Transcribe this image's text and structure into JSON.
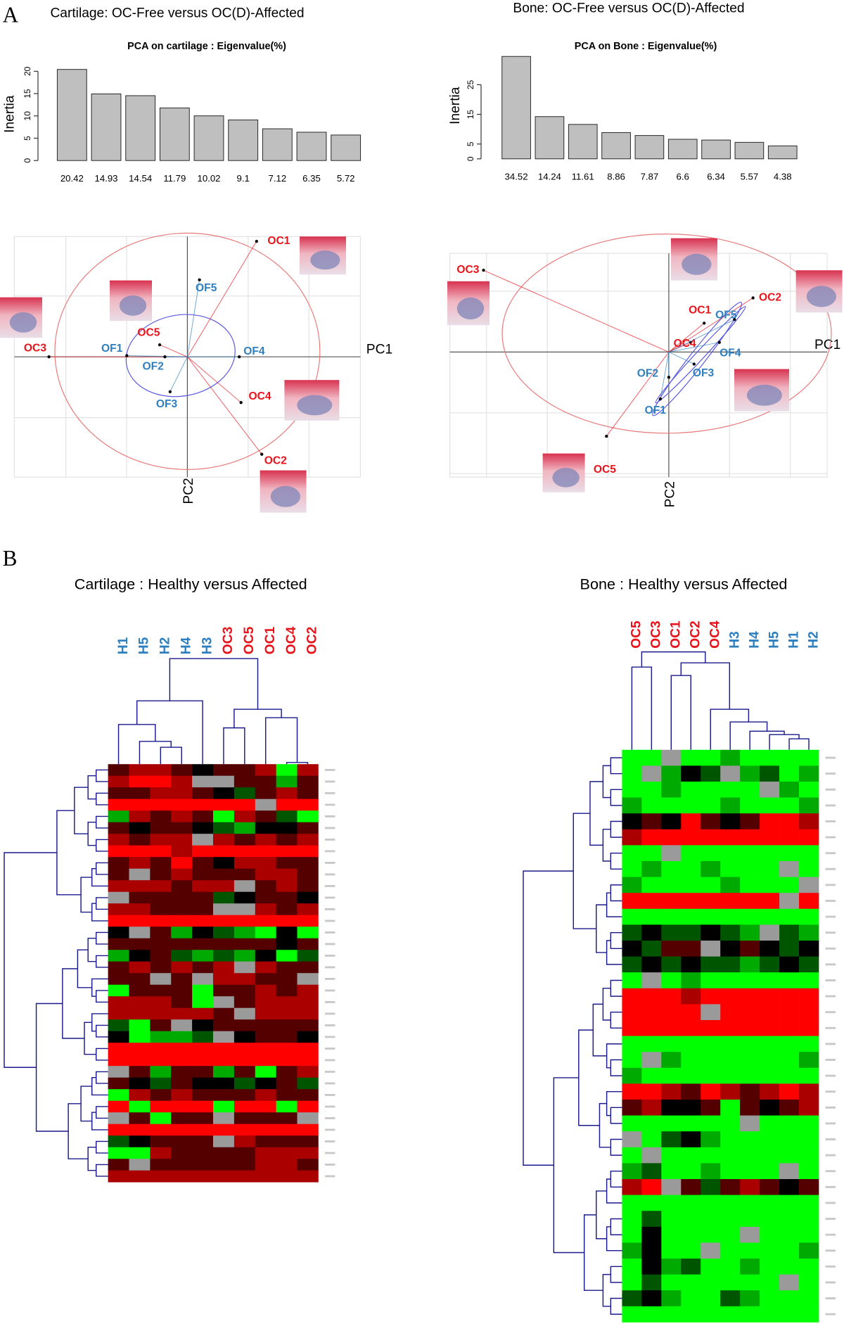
{
  "panel_labels": [
    "A",
    "B"
  ],
  "chart_data": [
    {
      "type": "bar",
      "title": "Cartilage: OC-Free versus OC(D)-Affected",
      "subtitle": "PCA on cartilage : Eigenvalue(%)",
      "ylabel": "Inertia",
      "values": [
        20.42,
        14.93,
        14.54,
        11.79,
        10.02,
        9.1,
        7.12,
        6.35,
        5.72
      ],
      "color": "#bfbfbf",
      "ylim": [
        0,
        21
      ],
      "yticks": [
        0,
        5,
        10,
        15,
        20
      ]
    },
    {
      "type": "bar",
      "title": "Bone: OC-Free versus OC(D)-Affected",
      "subtitle": "PCA on Bone : Eigenvalue(%)",
      "ylabel": "Inertia",
      "values": [
        34.52,
        14.24,
        11.61,
        8.86,
        7.87,
        6.6,
        6.34,
        5.57,
        4.38
      ],
      "color": "#bfbfbf",
      "ylim": [
        0,
        35
      ],
      "yticks": [
        0,
        5,
        15,
        25
      ]
    },
    {
      "type": "scatter",
      "xlabel": "PC1",
      "ylabel": "PC2",
      "xlim": [
        -1,
        1
      ],
      "ylim": [
        -1,
        1
      ],
      "grid": true,
      "points": [
        {
          "label": "OC1",
          "color": "#e8141b",
          "x": 0.4,
          "y": 0.96
        },
        {
          "label": "OC2",
          "color": "#e8141b",
          "x": 0.43,
          "y": -0.81
        },
        {
          "label": "OC3",
          "color": "#e8141b",
          "x": -0.8,
          "y": 0.0
        },
        {
          "label": "OC4",
          "color": "#e8141b",
          "x": 0.31,
          "y": -0.38
        },
        {
          "label": "OC5",
          "color": "#e8141b",
          "x": -0.16,
          "y": 0.1
        },
        {
          "label": "OF1",
          "color": "#2e7fc0",
          "x": -0.35,
          "y": 0.01
        },
        {
          "label": "OF2",
          "color": "#2e7fc0",
          "x": -0.13,
          "y": 0.0
        },
        {
          "label": "OF3",
          "color": "#2e7fc0",
          "x": -0.1,
          "y": -0.29
        },
        {
          "label": "OF4",
          "color": "#2e7fc0",
          "x": 0.3,
          "y": 0.0
        },
        {
          "label": "OF5",
          "color": "#2e7fc0",
          "x": 0.07,
          "y": 0.64
        }
      ]
    },
    {
      "type": "scatter",
      "xlabel": "PC1",
      "ylabel": "PC2",
      "xlim": [
        -1.3,
        0.94
      ],
      "ylim": [
        -1.04,
        0.82
      ],
      "grid": true,
      "points": [
        {
          "label": "OC1",
          "color": "#e8141b",
          "x": 0.21,
          "y": 0.24
        },
        {
          "label": "OC2",
          "color": "#e8141b",
          "x": 0.5,
          "y": 0.45
        },
        {
          "label": "OC3",
          "color": "#e8141b",
          "x": -1.1,
          "y": 0.68
        },
        {
          "label": "OC4",
          "color": "#e8141b",
          "x": 0.13,
          "y": 0.08
        },
        {
          "label": "OC5",
          "color": "#e8141b",
          "x": -0.37,
          "y": -0.7
        },
        {
          "label": "OF1",
          "color": "#2e7fc0",
          "x": -0.05,
          "y": -0.39
        },
        {
          "label": "OF2",
          "color": "#2e7fc0",
          "x": 0.0,
          "y": -0.21
        },
        {
          "label": "OF3",
          "color": "#2e7fc0",
          "x": 0.15,
          "y": -0.1
        },
        {
          "label": "OF4",
          "color": "#2e7fc0",
          "x": 0.3,
          "y": 0.08
        },
        {
          "label": "OF5",
          "color": "#2e7fc0",
          "x": 0.39,
          "y": 0.27
        }
      ]
    },
    {
      "type": "heatmap",
      "title": "Cartilage : Healthy versus Affected",
      "categories": [
        "H1",
        "H5",
        "H2",
        "H4",
        "H3",
        "OC3",
        "OC5",
        "OC1",
        "OC4",
        "OC2"
      ],
      "category_colors": [
        "#2e7fc0",
        "#2e7fc0",
        "#2e7fc0",
        "#2e7fc0",
        "#2e7fc0",
        "#e8141b",
        "#e8141b",
        "#e8141b",
        "#e8141b",
        "#e8141b"
      ],
      "zlim": [
        -3,
        3
      ],
      "values": [
        [
          1,
          2,
          2,
          1,
          0,
          1,
          1,
          2,
          -3,
          2
        ],
        [
          2,
          3,
          3,
          2,
          null,
          null,
          1,
          1,
          -2,
          1
        ],
        [
          1,
          1,
          2,
          2,
          1,
          0,
          -1,
          1,
          2,
          1
        ],
        [
          3,
          3,
          3,
          3,
          3,
          3,
          3,
          null,
          3,
          3
        ],
        [
          -2,
          2,
          1,
          2,
          1,
          -3,
          2,
          1,
          -1,
          -3
        ],
        [
          1,
          0,
          1,
          1,
          0,
          -1,
          -2,
          0,
          0,
          1
        ],
        [
          2,
          1,
          2,
          2,
          null,
          2,
          1,
          2,
          1,
          2
        ],
        [
          3,
          3,
          3,
          2,
          3,
          3,
          3,
          3,
          3,
          3
        ],
        [
          1,
          2,
          1,
          3,
          1,
          0,
          2,
          2,
          1,
          1
        ],
        [
          1,
          null,
          1,
          2,
          1,
          1,
          1,
          2,
          2,
          1
        ],
        [
          2,
          2,
          2,
          1,
          2,
          2,
          null,
          1,
          2,
          1
        ],
        [
          null,
          1,
          1,
          1,
          1,
          -1,
          0,
          1,
          1,
          0
        ],
        [
          2,
          2,
          1,
          1,
          1,
          null,
          null,
          2,
          1,
          2
        ],
        [
          3,
          3,
          3,
          3,
          3,
          3,
          3,
          3,
          3,
          3
        ],
        [
          0,
          null,
          1,
          -2,
          0,
          -1,
          -2,
          -3,
          0,
          -3
        ],
        [
          1,
          1,
          1,
          1,
          1,
          1,
          1,
          1,
          0,
          1
        ],
        [
          -2,
          0,
          1,
          -1,
          -2,
          -1,
          -2,
          0,
          -3,
          -1
        ],
        [
          1,
          2,
          1,
          2,
          1,
          2,
          null,
          2,
          1,
          1
        ],
        [
          1,
          1,
          null,
          1,
          null,
          2,
          2,
          1,
          1,
          null
        ],
        [
          -3,
          1,
          1,
          1,
          -3,
          1,
          1,
          2,
          1,
          2
        ],
        [
          2,
          2,
          2,
          1,
          -3,
          null,
          1,
          2,
          2,
          2
        ],
        [
          2,
          2,
          2,
          2,
          2,
          1,
          null,
          2,
          2,
          2
        ],
        [
          -1,
          -3,
          1,
          null,
          0,
          1,
          1,
          1,
          1,
          1
        ],
        [
          0,
          -3,
          -2,
          -2,
          -1,
          null,
          0,
          1,
          1,
          0
        ],
        [
          3,
          3,
          3,
          3,
          3,
          3,
          3,
          3,
          3,
          3
        ],
        [
          3,
          3,
          3,
          3,
          3,
          3,
          3,
          3,
          3,
          3
        ],
        [
          null,
          1,
          -2,
          1,
          1,
          -2,
          1,
          -3,
          1,
          2
        ],
        [
          1,
          0,
          -1,
          1,
          0,
          0,
          -1,
          0,
          1,
          -1
        ],
        [
          -3,
          2,
          1,
          2,
          1,
          1,
          1,
          2,
          1,
          1
        ],
        [
          3,
          -3,
          3,
          3,
          3,
          -3,
          3,
          3,
          -3,
          3
        ],
        [
          null,
          1,
          -3,
          1,
          1,
          null,
          1,
          1,
          1,
          null
        ],
        [
          3,
          3,
          3,
          3,
          3,
          3,
          3,
          3,
          3,
          3
        ],
        [
          -1,
          0,
          1,
          1,
          1,
          null,
          2,
          1,
          1,
          1
        ],
        [
          -3,
          -3,
          2,
          1,
          1,
          1,
          1,
          2,
          2,
          2
        ],
        [
          1,
          null,
          1,
          1,
          1,
          1,
          1,
          2,
          2,
          1
        ],
        [
          2,
          2,
          2,
          2,
          2,
          2,
          2,
          2,
          2,
          2
        ]
      ]
    },
    {
      "type": "heatmap",
      "title": "Bone : Healthy versus Affected",
      "categories": [
        "OC5",
        "OC3",
        "OC1",
        "OC2",
        "OC4",
        "H3",
        "H4",
        "H5",
        "H1",
        "H2"
      ],
      "category_colors": [
        "#e8141b",
        "#e8141b",
        "#e8141b",
        "#e8141b",
        "#e8141b",
        "#2e7fc0",
        "#2e7fc0",
        "#2e7fc0",
        "#2e7fc0",
        "#2e7fc0"
      ],
      "zlim": [
        -3,
        3
      ],
      "values": [
        [
          -3,
          -3,
          null,
          -3,
          -3,
          -2,
          -3,
          -3,
          -3,
          -3
        ],
        [
          -3,
          null,
          -2,
          0,
          -1,
          null,
          -2,
          -1,
          -3,
          -2
        ],
        [
          -3,
          -3,
          -2,
          -3,
          -3,
          -3,
          -3,
          null,
          -2,
          -3
        ],
        [
          -2,
          -3,
          -3,
          -3,
          -3,
          -2,
          -3,
          -3,
          -3,
          -2
        ],
        [
          0,
          1,
          0,
          3,
          1,
          0,
          1,
          3,
          3,
          2
        ],
        [
          2,
          3,
          3,
          3,
          3,
          3,
          3,
          3,
          3,
          3
        ],
        [
          -3,
          -3,
          null,
          -3,
          -3,
          -3,
          -3,
          -3,
          -3,
          -3
        ],
        [
          -3,
          -2,
          -3,
          -3,
          -2,
          -3,
          -3,
          -3,
          null,
          -3
        ],
        [
          -2,
          -3,
          -3,
          -3,
          -3,
          -2,
          -3,
          -3,
          -3,
          null
        ],
        [
          3,
          3,
          3,
          3,
          3,
          3,
          3,
          3,
          null,
          3
        ],
        [
          -3,
          -3,
          -3,
          -3,
          -3,
          -3,
          -3,
          -3,
          -3,
          -3
        ],
        [
          -1,
          0,
          -1,
          -1,
          0,
          -1,
          -2,
          null,
          -1,
          -2
        ],
        [
          0,
          -1,
          1,
          1,
          null,
          0,
          1,
          0,
          -1,
          0
        ],
        [
          -1,
          0,
          -1,
          0,
          -1,
          -1,
          -2,
          -1,
          0,
          -1
        ],
        [
          -3,
          null,
          -3,
          -2,
          -3,
          -3,
          -3,
          -3,
          -3,
          -3
        ],
        [
          3,
          3,
          3,
          2,
          3,
          3,
          3,
          3,
          3,
          3
        ],
        [
          3,
          3,
          3,
          3,
          null,
          3,
          3,
          3,
          3,
          3
        ],
        [
          3,
          3,
          3,
          3,
          3,
          3,
          3,
          3,
          3,
          3
        ],
        [
          -3,
          -3,
          -3,
          -3,
          -3,
          -3,
          -3,
          -3,
          -3,
          -3
        ],
        [
          -3,
          null,
          -2,
          -3,
          -3,
          -3,
          -3,
          -3,
          -3,
          -2
        ],
        [
          -2,
          -3,
          -3,
          -3,
          -3,
          -3,
          -3,
          -3,
          -3,
          -3
        ],
        [
          3,
          3,
          2,
          1,
          3,
          2,
          1,
          2,
          3,
          2
        ],
        [
          1,
          2,
          0,
          0,
          1,
          -3,
          1,
          0,
          1,
          2
        ],
        [
          -3,
          -3,
          -3,
          -3,
          -3,
          -3,
          null,
          -3,
          -3,
          -3
        ],
        [
          null,
          -3,
          -1,
          0,
          -2,
          -3,
          -3,
          -3,
          -3,
          -3
        ],
        [
          -3,
          null,
          -3,
          -3,
          -3,
          -3,
          -3,
          -3,
          -3,
          -3
        ],
        [
          -2,
          -1,
          -3,
          -3,
          -2,
          -3,
          -3,
          -3,
          null,
          -3
        ],
        [
          2,
          3,
          null,
          1,
          -1,
          1,
          2,
          1,
          0,
          1
        ],
        [
          -3,
          -3,
          -3,
          -3,
          -3,
          -3,
          -3,
          -3,
          -3,
          -3
        ],
        [
          -3,
          -1,
          -3,
          -3,
          -3,
          -3,
          -3,
          -3,
          -3,
          -3
        ],
        [
          -3,
          0,
          -3,
          -3,
          -3,
          -3,
          null,
          -3,
          -3,
          -3
        ],
        [
          -2,
          0,
          -3,
          -3,
          null,
          -3,
          -3,
          -3,
          -3,
          -2
        ],
        [
          -3,
          0,
          -2,
          -1,
          -3,
          -3,
          -2,
          -3,
          -3,
          -3
        ],
        [
          -3,
          -1,
          -3,
          -3,
          -3,
          -3,
          -3,
          -3,
          null,
          -3
        ],
        [
          -1,
          0,
          -2,
          -3,
          -3,
          -1,
          -2,
          -3,
          -3,
          -3
        ],
        [
          -3,
          -3,
          -3,
          -3,
          -3,
          -3,
          -3,
          -3,
          -3,
          -3
        ]
      ]
    }
  ]
}
